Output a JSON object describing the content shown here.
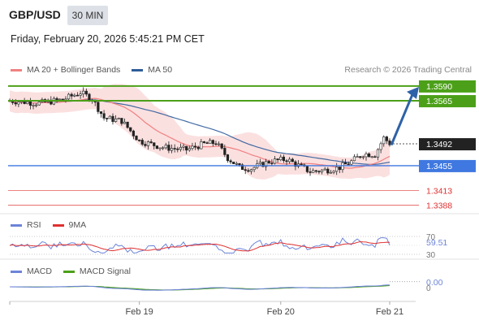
{
  "header": {
    "symbol": "GBP/USD",
    "timeframe": "30 MIN",
    "datetime": "Friday, February 20, 2026 5:45:21 PM CET"
  },
  "legend": {
    "ma20_label": "MA 20 + Bollinger Bands",
    "ma50_label": "MA 50",
    "credit": "Research © 2026 Trading Central",
    "rsi_label": "RSI",
    "rsi_ma_label": "9MA",
    "macd_label": "MACD",
    "macd_signal_label": "MACD Signal"
  },
  "colors": {
    "ma20": "#f08080",
    "bollinger_fill": "#fadada",
    "ma50": "#2e5c9a",
    "resistance": "#4ca019",
    "support": "#3f78e0",
    "red_level": "#e03030",
    "arrow": "#2e62a8",
    "candle": "#222222",
    "rsi": "#6c84d8",
    "rsi_ma": "#e03030",
    "macd": "#6c84d8",
    "macd_signal": "#4ca019"
  },
  "chart_data": [
    {
      "type": "candlestick",
      "ylim": [
        1.3375,
        1.3605
      ],
      "levels": [
        {
          "value": 1.359,
          "label": "1.3590",
          "kind": "resistance"
        },
        {
          "value": 1.3565,
          "label": "1.3565",
          "kind": "resistance"
        },
        {
          "value": 1.3492,
          "label": "1.3492",
          "kind": "current"
        },
        {
          "value": 1.3455,
          "label": "1.3455",
          "kind": "support"
        },
        {
          "value": 1.3413,
          "label": "1.3413",
          "kind": "red"
        },
        {
          "value": 1.3388,
          "label": "1.3388",
          "kind": "red"
        }
      ],
      "projection": {
        "from": 1.349,
        "to": 1.359
      },
      "x_ticks": [
        {
          "label": "Feb 19",
          "index": 44
        },
        {
          "label": "Feb 20",
          "index": 92
        },
        {
          "label": "Feb 21",
          "index": 130
        }
      ],
      "series": [
        {
          "name": "MA 20 + Bollinger Bands"
        },
        {
          "name": "MA 50"
        }
      ],
      "ohlc_waypoints": [
        [
          0,
          1.3565
        ],
        [
          10,
          1.3561
        ],
        [
          18,
          1.3567
        ],
        [
          24,
          1.3579
        ],
        [
          28,
          1.3568
        ],
        [
          32,
          1.3536
        ],
        [
          38,
          1.3531
        ],
        [
          44,
          1.3497
        ],
        [
          52,
          1.3486
        ],
        [
          60,
          1.3482
        ],
        [
          66,
          1.3492
        ],
        [
          70,
          1.3494
        ],
        [
          74,
          1.3468
        ],
        [
          78,
          1.3452
        ],
        [
          82,
          1.345
        ],
        [
          88,
          1.3462
        ],
        [
          94,
          1.3466
        ],
        [
          98,
          1.3455
        ],
        [
          102,
          1.3445
        ],
        [
          108,
          1.3448
        ],
        [
          112,
          1.3452
        ],
        [
          116,
          1.3462
        ],
        [
          120,
          1.3475
        ],
        [
          124,
          1.3474
        ],
        [
          127,
          1.3502
        ],
        [
          129,
          1.3493
        ]
      ]
    },
    {
      "type": "line",
      "name": "RSI",
      "ylim": [
        30,
        70
      ],
      "tick_labels": [
        "70",
        "30"
      ],
      "last_value": "59.51",
      "series": [
        {
          "name": "RSI"
        },
        {
          "name": "9MA"
        }
      ]
    },
    {
      "type": "line",
      "name": "MACD",
      "tick_labels": [
        "0"
      ],
      "last_value": "0.00",
      "series": [
        {
          "name": "MACD"
        },
        {
          "name": "MACD Signal"
        }
      ]
    }
  ]
}
